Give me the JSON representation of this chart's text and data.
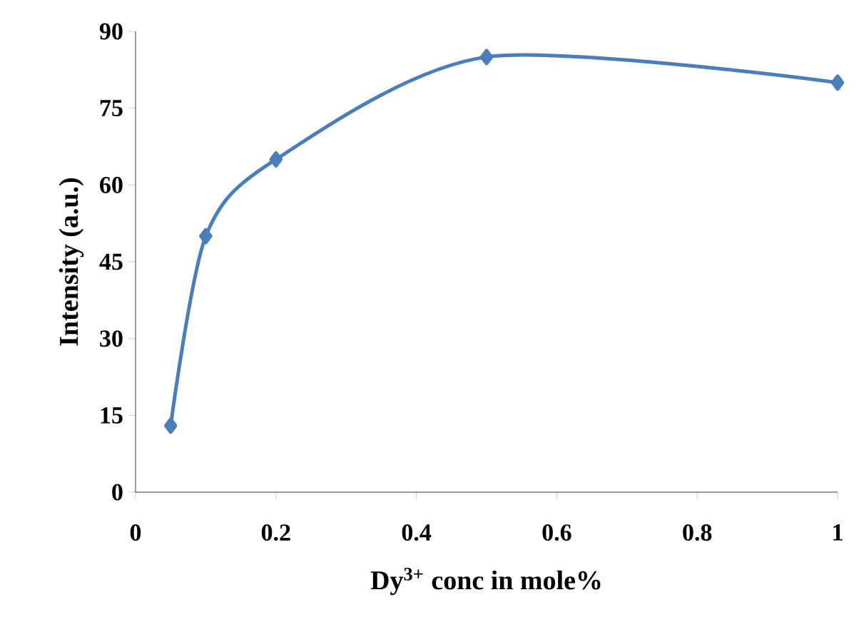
{
  "chart_data": {
    "type": "line",
    "xlabel": "Dy$^{3+}$ conc in mole%",
    "ylabel": "Intensity (a.u.)",
    "x": [
      0.05,
      0.1,
      0.2,
      0.5,
      1.0
    ],
    "values": [
      13,
      50,
      65,
      85,
      80
    ],
    "color": "#4a7ebb",
    "marker": "diamond",
    "line_style": "solid",
    "xlim": [
      0,
      1
    ],
    "ylim": [
      0,
      90
    ],
    "xticks": [
      0,
      0.2,
      0.4,
      0.6,
      0.8,
      1
    ],
    "yticks": [
      0,
      15,
      30,
      45,
      60,
      75,
      90
    ]
  }
}
